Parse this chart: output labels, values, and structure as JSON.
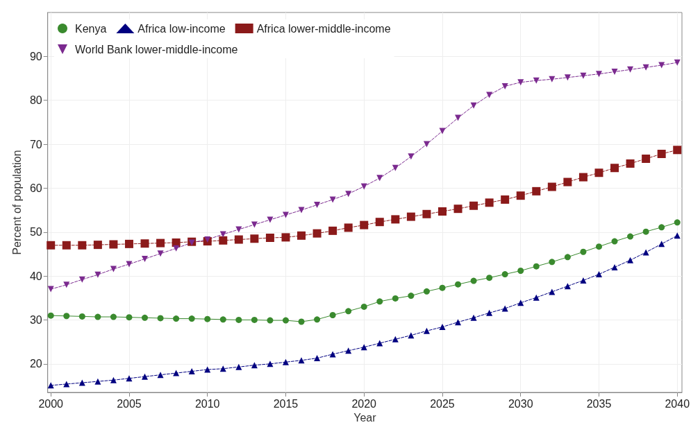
{
  "chart_data": {
    "type": "line",
    "xlabel": "Year",
    "ylabel": "Percent of population",
    "x": [
      2000,
      2001,
      2002,
      2003,
      2004,
      2005,
      2006,
      2007,
      2008,
      2009,
      2010,
      2011,
      2012,
      2013,
      2014,
      2015,
      2016,
      2017,
      2018,
      2019,
      2020,
      2021,
      2022,
      2023,
      2024,
      2025,
      2026,
      2027,
      2028,
      2029,
      2030,
      2031,
      2032,
      2033,
      2034,
      2035,
      2036,
      2037,
      2038,
      2039,
      2040
    ],
    "series": [
      {
        "name": "Kenya",
        "color": "#3a8a2e",
        "marker": "circle",
        "line_style": "solid",
        "values": [
          31.0,
          30.9,
          30.8,
          30.7,
          30.7,
          30.6,
          30.5,
          30.4,
          30.3,
          30.3,
          30.2,
          30.1,
          30.0,
          30.0,
          29.9,
          29.9,
          29.6,
          30.1,
          31.1,
          32.0,
          33.0,
          34.2,
          34.9,
          35.5,
          36.5,
          37.3,
          38.1,
          38.9,
          39.6,
          40.4,
          41.2,
          42.2,
          43.2,
          44.3,
          45.5,
          46.7,
          47.9,
          49.0,
          50.1,
          51.1,
          52.2
        ]
      },
      {
        "name": "Africa low-income",
        "color": "#000080",
        "marker": "triangle",
        "line_style": "dashed",
        "values": [
          15.1,
          15.4,
          15.7,
          16.0,
          16.3,
          16.7,
          17.1,
          17.5,
          17.9,
          18.3,
          18.7,
          18.9,
          19.3,
          19.7,
          20.0,
          20.4,
          20.8,
          21.3,
          22.2,
          23.0,
          23.8,
          24.7,
          25.6,
          26.5,
          27.5,
          28.4,
          29.5,
          30.5,
          31.6,
          32.6,
          33.9,
          35.1,
          36.4,
          37.7,
          39.0,
          40.4,
          42.0,
          43.6,
          45.4,
          47.3,
          49.2
        ]
      },
      {
        "name": "Africa lower-middle-income",
        "color": "#8b1a1a",
        "marker": "square",
        "line_style": "dashed",
        "values": [
          47.0,
          47.0,
          47.0,
          47.1,
          47.2,
          47.3,
          47.4,
          47.5,
          47.6,
          47.8,
          47.9,
          48.1,
          48.3,
          48.5,
          48.7,
          48.8,
          49.2,
          49.7,
          50.3,
          51.0,
          51.6,
          52.3,
          52.9,
          53.5,
          54.1,
          54.7,
          55.3,
          56.0,
          56.7,
          57.4,
          58.3,
          59.3,
          60.3,
          61.4,
          62.5,
          63.5,
          64.6,
          65.6,
          66.7,
          67.8,
          68.7
        ]
      },
      {
        "name": "World Bank lower-middle-income",
        "color": "#7b2a8f",
        "marker": "triangle-down",
        "line_style": "dashed",
        "values": [
          37.0,
          38.0,
          39.2,
          40.3,
          41.6,
          42.7,
          43.9,
          45.1,
          46.3,
          47.6,
          48.3,
          49.5,
          50.6,
          51.7,
          52.8,
          53.9,
          55.0,
          56.2,
          57.4,
          58.7,
          60.4,
          62.3,
          64.6,
          67.2,
          70.0,
          73.0,
          76.0,
          78.8,
          81.2,
          83.2,
          84.1,
          84.5,
          84.8,
          85.2,
          85.6,
          86.0,
          86.5,
          87.0,
          87.5,
          88.0,
          88.6
        ]
      }
    ],
    "xlim": [
      1999.8,
      2040.3
    ],
    "xticks": [
      2000,
      2005,
      2010,
      2015,
      2020,
      2025,
      2030,
      2035,
      2040
    ],
    "ylim": [
      13.5,
      100
    ],
    "yticks": [
      20,
      30,
      40,
      50,
      60,
      70,
      80,
      90
    ],
    "grid": true,
    "legend": "top left"
  }
}
